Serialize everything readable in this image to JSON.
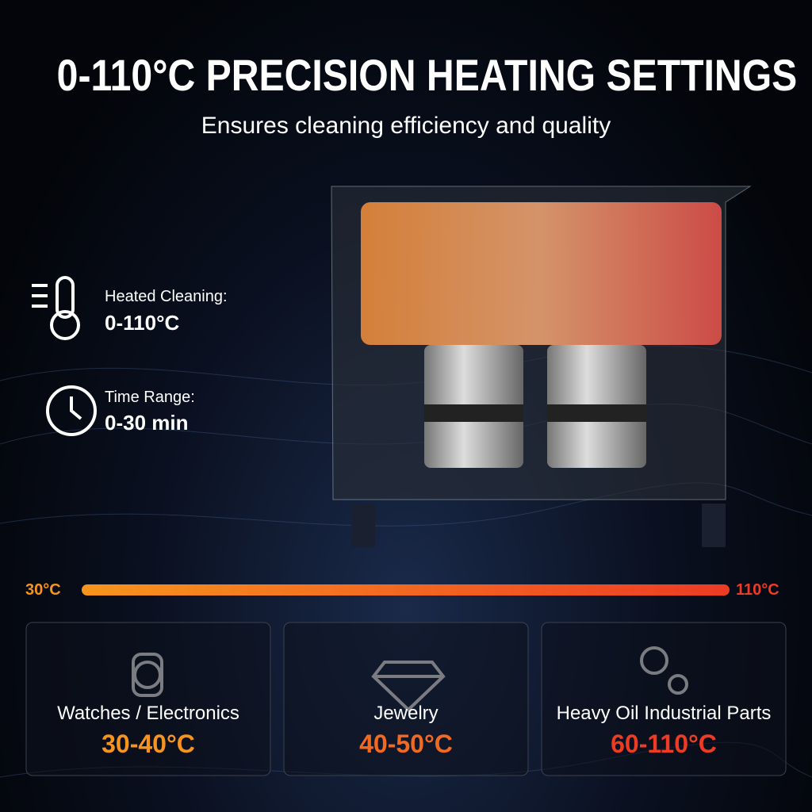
{
  "header": {
    "title": "0-110°C PRECISION HEATING SETTINGS",
    "subtitle": "Ensures cleaning efficiency and quality"
  },
  "features": [
    {
      "label": "Heated Cleaning:",
      "value": "0-110°C"
    },
    {
      "label": "Time Range:",
      "value": "0-30 min"
    }
  ],
  "scale": {
    "min_label": "30°C",
    "max_label": "110°C"
  },
  "cards": [
    {
      "label": "Watches / Electronics",
      "range": "30-40°C",
      "color": "#f7941d"
    },
    {
      "label": "Jewelry",
      "range": "40-50°C",
      "color": "#f26a21"
    },
    {
      "label": "Heavy Oil Industrial Parts",
      "range": "60-110°C",
      "color": "#ee3b24"
    }
  ]
}
